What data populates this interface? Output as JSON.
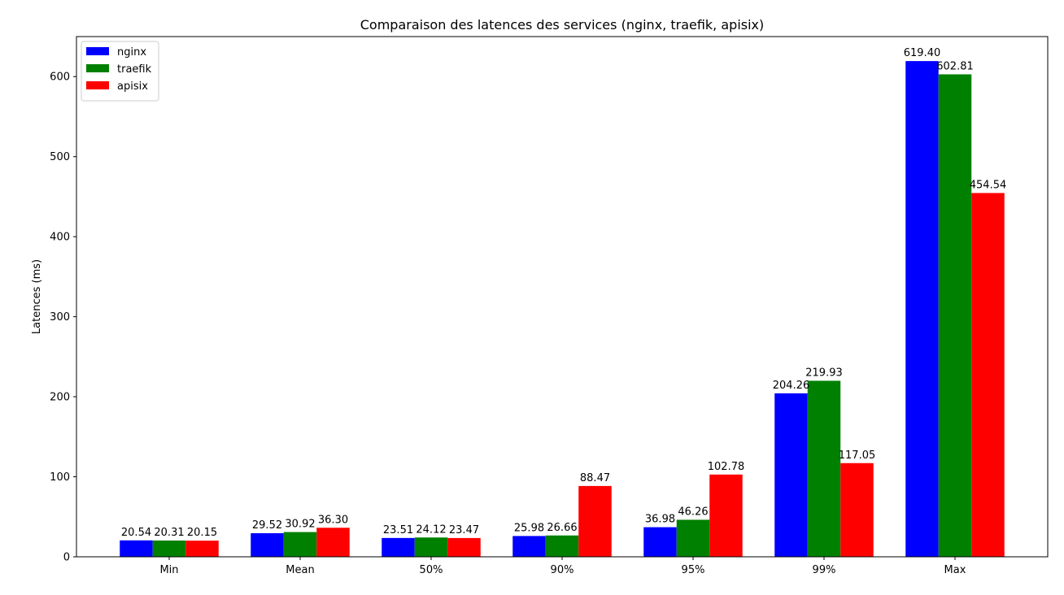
{
  "chart_data": {
    "type": "bar",
    "title": "Comparaison des latences des services (nginx, traefik, apisix)",
    "xlabel": "",
    "ylabel": "Latences (ms)",
    "categories": [
      "Min",
      "Mean",
      "50%",
      "90%",
      "95%",
      "99%",
      "Max"
    ],
    "series": [
      {
        "name": "nginx",
        "color": "#0000ff",
        "values": [
          20.54,
          29.52,
          23.51,
          25.98,
          36.98,
          204.26,
          619.4
        ],
        "labels": [
          "20.54",
          "29.52",
          "23.51",
          "25.98",
          "36.98",
          "204.26",
          "619.40"
        ]
      },
      {
        "name": "traefik",
        "color": "#008000",
        "values": [
          20.31,
          30.92,
          24.12,
          26.66,
          46.26,
          219.93,
          602.81
        ],
        "labels": [
          "20.31",
          "30.92",
          "24.12",
          "26.66",
          "46.26",
          "219.93",
          "602.81"
        ]
      },
      {
        "name": "apisix",
        "color": "#ff0000",
        "values": [
          20.15,
          36.3,
          23.47,
          88.47,
          102.78,
          117.05,
          454.54
        ],
        "labels": [
          "20.15",
          "36.30",
          "23.47",
          "88.47",
          "102.78",
          "117.05",
          "454.54"
        ]
      }
    ],
    "ylim": [
      0,
      650
    ],
    "yticks": [
      0,
      100,
      200,
      300,
      400,
      500,
      600
    ],
    "grid": false,
    "legend_position": "top-left"
  }
}
